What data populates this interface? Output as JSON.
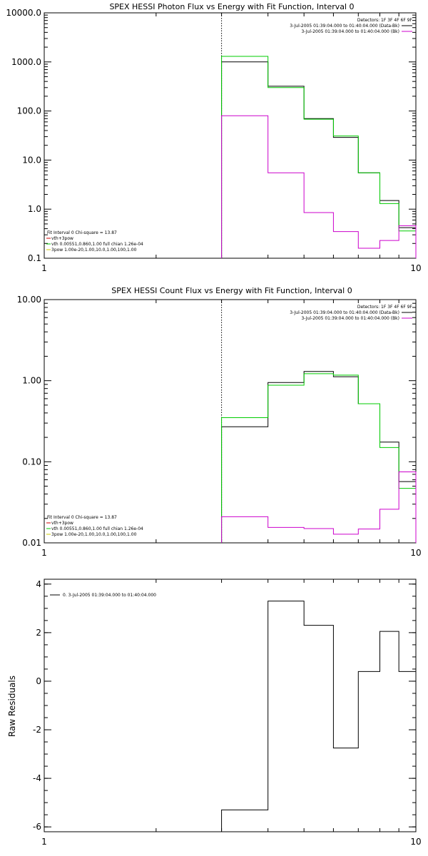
{
  "chart_data": [
    {
      "type": "line",
      "title": "SPEX HESSI Photon Flux vs Energy with Fit Function, Interval 0",
      "xscale": "log",
      "yscale": "log",
      "xlim": [
        1,
        10
      ],
      "ylim": [
        0.1,
        10000
      ],
      "x_ticks": [
        "1",
        "10"
      ],
      "y_ticks": [
        {
          "v": 0.1,
          "label": "0.1"
        },
        {
          "v": 1,
          "label": "1.0"
        },
        {
          "v": 10,
          "label": "10.0"
        },
        {
          "v": 100,
          "label": "100.0"
        },
        {
          "v": 1000,
          "label": "1000.0"
        },
        {
          "v": 10000,
          "label": "10000.0"
        }
      ],
      "vline_x": 3.0,
      "legend_top": [
        {
          "text": "Detectors: 1F 3F 4F 6F 9F",
          "color": ""
        },
        {
          "text": "3-Jul-2005 01:39:04.000 to 01:40:04.000 (Data-Bk)",
          "color": "#000000"
        },
        {
          "text": "3-Jul-2005 01:39:04.000 to 01:40:04.000 (Bk)",
          "color": "#cc00cc"
        }
      ],
      "legend_bottom": [
        {
          "text": "Fit Interval 0   Chi-square = 13.87",
          "color": ""
        },
        {
          "text": "vth+3pow",
          "color": "#cc0000"
        },
        {
          "text": "vth 0.00551,0.860,1.00  full chian 1.26e-04",
          "color": "#00cc00"
        },
        {
          "text": "3pow 1.00e-20,1.00,10.0,1.00,100,1.00",
          "color": "#cccc00"
        }
      ],
      "series": [
        {
          "color": "#000000",
          "edges": [
            3,
            4,
            5,
            6,
            7,
            8,
            9,
            10
          ],
          "values": [
            1000,
            320,
            70,
            29,
            5.5,
            1.5,
            0.42
          ]
        },
        {
          "color": "#00cc00",
          "edges": [
            3,
            4,
            5,
            6,
            7,
            8,
            9,
            10
          ],
          "values": [
            1300,
            300,
            68,
            31,
            5.5,
            1.3,
            0.36
          ]
        },
        {
          "color": "#cc00cc",
          "edges": [
            3,
            4,
            5,
            6,
            7,
            8,
            9,
            10
          ],
          "values": [
            80,
            5.5,
            0.85,
            0.35,
            0.16,
            0.23,
            0.46
          ]
        }
      ]
    },
    {
      "type": "line",
      "title": "SPEX HESSI Count Flux vs Energy with Fit Function, Interval 0",
      "xscale": "log",
      "yscale": "log",
      "xlim": [
        1,
        10
      ],
      "ylim": [
        0.01,
        10
      ],
      "x_ticks": [
        "1",
        "10"
      ],
      "y_ticks": [
        {
          "v": 0.01,
          "label": "0.01"
        },
        {
          "v": 0.1,
          "label": "0.10"
        },
        {
          "v": 1,
          "label": "1.00"
        },
        {
          "v": 10,
          "label": "10.00"
        }
      ],
      "vline_x": 3.0,
      "legend_top": [
        {
          "text": "Detectors: 1F 3F 4F 6F 9F",
          "color": ""
        },
        {
          "text": "3-Jul-2005 01:39:04.000 to 01:40:04.000 (Data-Bk)",
          "color": "#000000"
        },
        {
          "text": "3-Jul-2005 01:39:04.000 to 01:40:04.000 (Bk)",
          "color": "#cc00cc"
        }
      ],
      "legend_bottom": [
        {
          "text": "Fit Interval 0   Chi-square = 13.87",
          "color": ""
        },
        {
          "text": "vth+3pow",
          "color": "#cc0000"
        },
        {
          "text": "vth 0.00551,0.860,1.00  full chian 1.26e-04",
          "color": "#00cc00"
        },
        {
          "text": "3pow 1.00e-20,1.00,10.0,1.00,100,1.00",
          "color": "#cccc00"
        }
      ],
      "series": [
        {
          "color": "#000000",
          "edges": [
            3,
            4,
            5,
            6,
            7,
            8,
            9,
            10
          ],
          "values": [
            0.27,
            0.95,
            1.3,
            1.12,
            0.52,
            0.175,
            0.057
          ]
        },
        {
          "color": "#00cc00",
          "edges": [
            3,
            4,
            5,
            6,
            7,
            8,
            9,
            10
          ],
          "values": [
            0.35,
            0.88,
            1.22,
            1.17,
            0.52,
            0.15,
            0.047
          ]
        },
        {
          "color": "#cc00cc",
          "edges": [
            3,
            4,
            5,
            6,
            7,
            8,
            9,
            10
          ],
          "values": [
            0.021,
            0.0155,
            0.015,
            0.0128,
            0.0148,
            0.026,
            0.075
          ]
        }
      ]
    },
    {
      "type": "line",
      "title": "",
      "xscale": "log",
      "yscale": "linear",
      "xlim": [
        1,
        10
      ],
      "ylim": [
        -6.2,
        4.2
      ],
      "ylabel": "Raw Residuals",
      "x_ticks": [
        "1",
        "10"
      ],
      "y_ticks": [
        {
          "v": -6,
          "label": "-6"
        },
        {
          "v": -4,
          "label": "-4"
        },
        {
          "v": -2,
          "label": "-2"
        },
        {
          "v": 0,
          "label": "0"
        },
        {
          "v": 2,
          "label": "2"
        },
        {
          "v": 4,
          "label": "4"
        }
      ],
      "legend_top": [
        {
          "text": "0. 3-Jul-2005 01:39:04.000 to 01:40:04.000",
          "color": "#000000"
        }
      ],
      "legend_bottom": [],
      "series": [
        {
          "color": "#000000",
          "edges": [
            3,
            4,
            5,
            6,
            7,
            8,
            9,
            10
          ],
          "values": [
            -5.3,
            3.3,
            2.3,
            -2.75,
            0.4,
            2.05,
            0.4
          ]
        }
      ]
    }
  ]
}
